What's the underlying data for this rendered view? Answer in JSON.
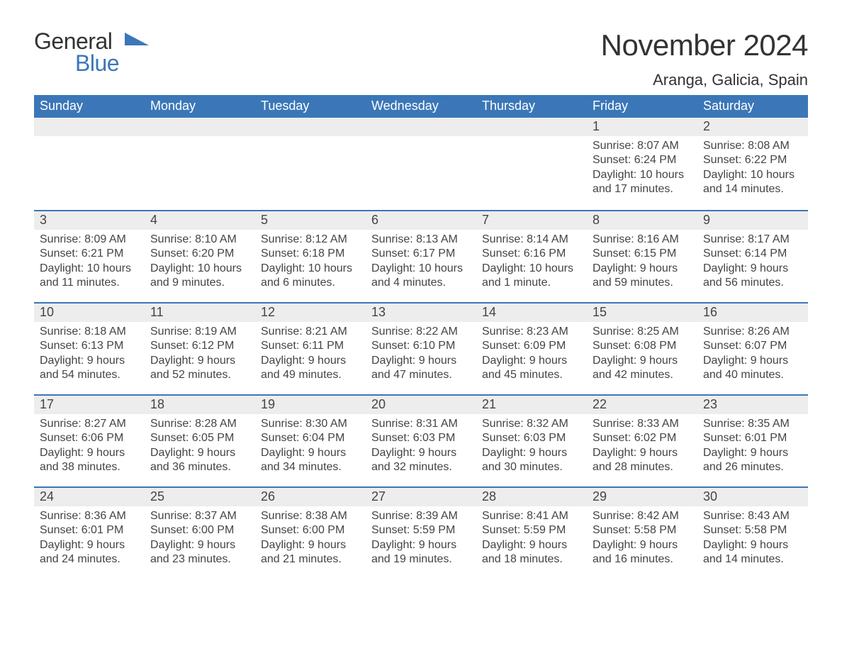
{
  "brand": {
    "text_general": "General",
    "text_blue": "Blue",
    "color_general": "#333333",
    "color_blue": "#3b77b8"
  },
  "title": "November 2024",
  "location": "Aranga, Galicia, Spain",
  "colors": {
    "header_bg": "#3b77b8",
    "header_text": "#ffffff",
    "daynum_bg": "#ededed",
    "text": "#444444",
    "rule": "#3b77b8",
    "page_bg": "#ffffff"
  },
  "days_of_week": [
    "Sunday",
    "Monday",
    "Tuesday",
    "Wednesday",
    "Thursday",
    "Friday",
    "Saturday"
  ],
  "weeks": [
    [
      null,
      null,
      null,
      null,
      null,
      {
        "n": "1",
        "sunrise": "Sunrise: 8:07 AM",
        "sunset": "Sunset: 6:24 PM",
        "dl1": "Daylight: 10 hours",
        "dl2": "and 17 minutes."
      },
      {
        "n": "2",
        "sunrise": "Sunrise: 8:08 AM",
        "sunset": "Sunset: 6:22 PM",
        "dl1": "Daylight: 10 hours",
        "dl2": "and 14 minutes."
      }
    ],
    [
      {
        "n": "3",
        "sunrise": "Sunrise: 8:09 AM",
        "sunset": "Sunset: 6:21 PM",
        "dl1": "Daylight: 10 hours",
        "dl2": "and 11 minutes."
      },
      {
        "n": "4",
        "sunrise": "Sunrise: 8:10 AM",
        "sunset": "Sunset: 6:20 PM",
        "dl1": "Daylight: 10 hours",
        "dl2": "and 9 minutes."
      },
      {
        "n": "5",
        "sunrise": "Sunrise: 8:12 AM",
        "sunset": "Sunset: 6:18 PM",
        "dl1": "Daylight: 10 hours",
        "dl2": "and 6 minutes."
      },
      {
        "n": "6",
        "sunrise": "Sunrise: 8:13 AM",
        "sunset": "Sunset: 6:17 PM",
        "dl1": "Daylight: 10 hours",
        "dl2": "and 4 minutes."
      },
      {
        "n": "7",
        "sunrise": "Sunrise: 8:14 AM",
        "sunset": "Sunset: 6:16 PM",
        "dl1": "Daylight: 10 hours",
        "dl2": "and 1 minute."
      },
      {
        "n": "8",
        "sunrise": "Sunrise: 8:16 AM",
        "sunset": "Sunset: 6:15 PM",
        "dl1": "Daylight: 9 hours",
        "dl2": "and 59 minutes."
      },
      {
        "n": "9",
        "sunrise": "Sunrise: 8:17 AM",
        "sunset": "Sunset: 6:14 PM",
        "dl1": "Daylight: 9 hours",
        "dl2": "and 56 minutes."
      }
    ],
    [
      {
        "n": "10",
        "sunrise": "Sunrise: 8:18 AM",
        "sunset": "Sunset: 6:13 PM",
        "dl1": "Daylight: 9 hours",
        "dl2": "and 54 minutes."
      },
      {
        "n": "11",
        "sunrise": "Sunrise: 8:19 AM",
        "sunset": "Sunset: 6:12 PM",
        "dl1": "Daylight: 9 hours",
        "dl2": "and 52 minutes."
      },
      {
        "n": "12",
        "sunrise": "Sunrise: 8:21 AM",
        "sunset": "Sunset: 6:11 PM",
        "dl1": "Daylight: 9 hours",
        "dl2": "and 49 minutes."
      },
      {
        "n": "13",
        "sunrise": "Sunrise: 8:22 AM",
        "sunset": "Sunset: 6:10 PM",
        "dl1": "Daylight: 9 hours",
        "dl2": "and 47 minutes."
      },
      {
        "n": "14",
        "sunrise": "Sunrise: 8:23 AM",
        "sunset": "Sunset: 6:09 PM",
        "dl1": "Daylight: 9 hours",
        "dl2": "and 45 minutes."
      },
      {
        "n": "15",
        "sunrise": "Sunrise: 8:25 AM",
        "sunset": "Sunset: 6:08 PM",
        "dl1": "Daylight: 9 hours",
        "dl2": "and 42 minutes."
      },
      {
        "n": "16",
        "sunrise": "Sunrise: 8:26 AM",
        "sunset": "Sunset: 6:07 PM",
        "dl1": "Daylight: 9 hours",
        "dl2": "and 40 minutes."
      }
    ],
    [
      {
        "n": "17",
        "sunrise": "Sunrise: 8:27 AM",
        "sunset": "Sunset: 6:06 PM",
        "dl1": "Daylight: 9 hours",
        "dl2": "and 38 minutes."
      },
      {
        "n": "18",
        "sunrise": "Sunrise: 8:28 AM",
        "sunset": "Sunset: 6:05 PM",
        "dl1": "Daylight: 9 hours",
        "dl2": "and 36 minutes."
      },
      {
        "n": "19",
        "sunrise": "Sunrise: 8:30 AM",
        "sunset": "Sunset: 6:04 PM",
        "dl1": "Daylight: 9 hours",
        "dl2": "and 34 minutes."
      },
      {
        "n": "20",
        "sunrise": "Sunrise: 8:31 AM",
        "sunset": "Sunset: 6:03 PM",
        "dl1": "Daylight: 9 hours",
        "dl2": "and 32 minutes."
      },
      {
        "n": "21",
        "sunrise": "Sunrise: 8:32 AM",
        "sunset": "Sunset: 6:03 PM",
        "dl1": "Daylight: 9 hours",
        "dl2": "and 30 minutes."
      },
      {
        "n": "22",
        "sunrise": "Sunrise: 8:33 AM",
        "sunset": "Sunset: 6:02 PM",
        "dl1": "Daylight: 9 hours",
        "dl2": "and 28 minutes."
      },
      {
        "n": "23",
        "sunrise": "Sunrise: 8:35 AM",
        "sunset": "Sunset: 6:01 PM",
        "dl1": "Daylight: 9 hours",
        "dl2": "and 26 minutes."
      }
    ],
    [
      {
        "n": "24",
        "sunrise": "Sunrise: 8:36 AM",
        "sunset": "Sunset: 6:01 PM",
        "dl1": "Daylight: 9 hours",
        "dl2": "and 24 minutes."
      },
      {
        "n": "25",
        "sunrise": "Sunrise: 8:37 AM",
        "sunset": "Sunset: 6:00 PM",
        "dl1": "Daylight: 9 hours",
        "dl2": "and 23 minutes."
      },
      {
        "n": "26",
        "sunrise": "Sunrise: 8:38 AM",
        "sunset": "Sunset: 6:00 PM",
        "dl1": "Daylight: 9 hours",
        "dl2": "and 21 minutes."
      },
      {
        "n": "27",
        "sunrise": "Sunrise: 8:39 AM",
        "sunset": "Sunset: 5:59 PM",
        "dl1": "Daylight: 9 hours",
        "dl2": "and 19 minutes."
      },
      {
        "n": "28",
        "sunrise": "Sunrise: 8:41 AM",
        "sunset": "Sunset: 5:59 PM",
        "dl1": "Daylight: 9 hours",
        "dl2": "and 18 minutes."
      },
      {
        "n": "29",
        "sunrise": "Sunrise: 8:42 AM",
        "sunset": "Sunset: 5:58 PM",
        "dl1": "Daylight: 9 hours",
        "dl2": "and 16 minutes."
      },
      {
        "n": "30",
        "sunrise": "Sunrise: 8:43 AM",
        "sunset": "Sunset: 5:58 PM",
        "dl1": "Daylight: 9 hours",
        "dl2": "and 14 minutes."
      }
    ]
  ]
}
